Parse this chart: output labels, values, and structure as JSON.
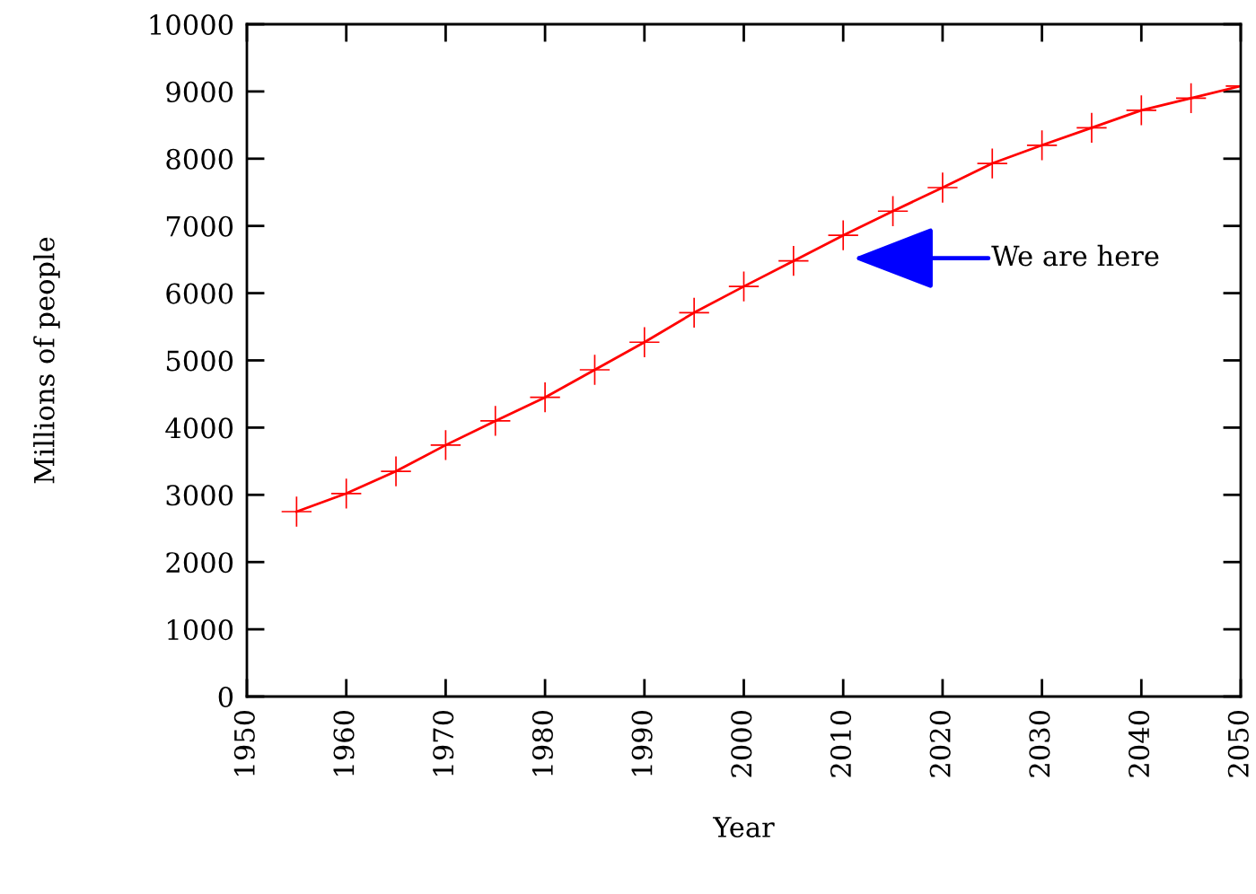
{
  "chart_data": {
    "type": "line",
    "xlabel": "Year",
    "ylabel": "Millions of people",
    "x": [
      1955,
      1960,
      1965,
      1970,
      1975,
      1980,
      1985,
      1990,
      1995,
      2000,
      2005,
      2010,
      2015,
      2020,
      2025,
      2030,
      2035,
      2040,
      2045,
      2050
    ],
    "series": [
      {
        "color": "#ff0000",
        "values": [
          2750,
          3020,
          3350,
          3740,
          4100,
          4450,
          4860,
          5270,
          5710,
          6100,
          6480,
          6860,
          7220,
          7570,
          7930,
          8200,
          8460,
          8720,
          8900,
          9080
        ]
      }
    ],
    "marker": "cross",
    "line_style": "solid",
    "grid": false,
    "legend": false,
    "xlim": [
      1950,
      2050
    ],
    "xticks": [
      1950,
      1960,
      1970,
      1980,
      1990,
      2000,
      2010,
      2020,
      2030,
      2040,
      2050
    ],
    "ylim": [
      0,
      10000
    ],
    "yticks": [
      0,
      1000,
      2000,
      3000,
      4000,
      5000,
      6000,
      7000,
      8000,
      9000,
      10000
    ],
    "annotations": [
      "We are here"
    ]
  }
}
